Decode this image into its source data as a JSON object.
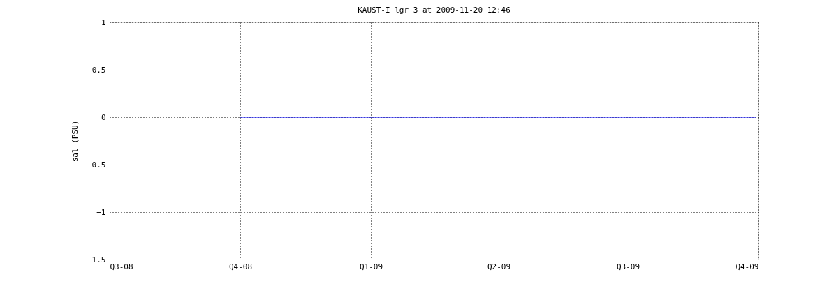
{
  "chart_data": {
    "type": "line",
    "title": "KAUST-I lgr 3 at 2009-11-20 12:46",
    "ylabel": "sal (PSU)",
    "x": [
      "2008-10-01",
      "2009-09-29"
    ],
    "series": [
      {
        "color": "#0000ff",
        "values": [
          0,
          0
        ]
      }
    ],
    "xlim": [
      "2008-07-01",
      "2009-10-01"
    ],
    "xticks": [
      {
        "value": "2008-07-01",
        "label": "Q3-08"
      },
      {
        "value": "2008-10-01",
        "label": "Q4-08"
      },
      {
        "value": "2009-01-01",
        "label": "Q1-09"
      },
      {
        "value": "2009-04-01",
        "label": "Q2-09"
      },
      {
        "value": "2009-07-01",
        "label": "Q3-09"
      },
      {
        "value": "2009-10-01",
        "label": "Q4-09"
      }
    ],
    "ylim": [
      -1.5,
      1
    ],
    "yticks": [
      -1.5,
      -1,
      -0.5,
      0,
      0.5,
      1
    ],
    "grid": true,
    "line_style": "solid",
    "marker": "none"
  }
}
